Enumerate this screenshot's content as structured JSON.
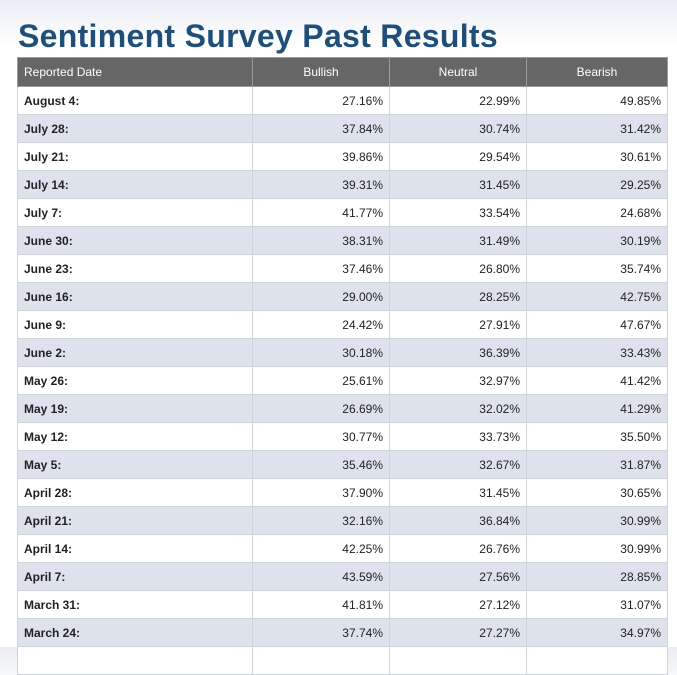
{
  "page": {
    "title": "Sentiment Survey Past Results"
  },
  "table": {
    "headers": [
      "Reported Date",
      "Bullish",
      "Neutral",
      "Bearish"
    ],
    "rows": [
      {
        "date": "August 4:",
        "bullish": "27.16%",
        "neutral": "22.99%",
        "bearish": "49.85%"
      },
      {
        "date": "July 28:",
        "bullish": "37.84%",
        "neutral": "30.74%",
        "bearish": "31.42%"
      },
      {
        "date": "July 21:",
        "bullish": "39.86%",
        "neutral": "29.54%",
        "bearish": "30.61%"
      },
      {
        "date": "July 14:",
        "bullish": "39.31%",
        "neutral": "31.45%",
        "bearish": "29.25%"
      },
      {
        "date": "July 7:",
        "bullish": "41.77%",
        "neutral": "33.54%",
        "bearish": "24.68%"
      },
      {
        "date": "June 30:",
        "bullish": "38.31%",
        "neutral": "31.49%",
        "bearish": "30.19%"
      },
      {
        "date": "June 23:",
        "bullish": "37.46%",
        "neutral": "26.80%",
        "bearish": "35.74%"
      },
      {
        "date": "June 16:",
        "bullish": "29.00%",
        "neutral": "28.25%",
        "bearish": "42.75%"
      },
      {
        "date": "June 9:",
        "bullish": "24.42%",
        "neutral": "27.91%",
        "bearish": "47.67%"
      },
      {
        "date": "June 2:",
        "bullish": "30.18%",
        "neutral": "36.39%",
        "bearish": "33.43%"
      },
      {
        "date": "May 26:",
        "bullish": "25.61%",
        "neutral": "32.97%",
        "bearish": "41.42%"
      },
      {
        "date": "May 19:",
        "bullish": "26.69%",
        "neutral": "32.02%",
        "bearish": "41.29%"
      },
      {
        "date": "May 12:",
        "bullish": "30.77%",
        "neutral": "33.73%",
        "bearish": "35.50%"
      },
      {
        "date": "May 5:",
        "bullish": "35.46%",
        "neutral": "32.67%",
        "bearish": "31.87%"
      },
      {
        "date": "April 28:",
        "bullish": "37.90%",
        "neutral": "31.45%",
        "bearish": "30.65%"
      },
      {
        "date": "April 21:",
        "bullish": "32.16%",
        "neutral": "36.84%",
        "bearish": "30.99%"
      },
      {
        "date": "April 14:",
        "bullish": "42.25%",
        "neutral": "26.76%",
        "bearish": "30.99%"
      },
      {
        "date": "April 7:",
        "bullish": "43.59%",
        "neutral": "27.56%",
        "bearish": "28.85%"
      },
      {
        "date": "March 31:",
        "bullish": "41.81%",
        "neutral": "27.12%",
        "bearish": "31.07%"
      },
      {
        "date": "March 24:",
        "bullish": "37.74%",
        "neutral": "27.27%",
        "bearish": "34.97%"
      },
      {
        "date": "",
        "bullish": "",
        "neutral": "",
        "bearish": ""
      }
    ]
  },
  "colors": {
    "title": "#1f4e79",
    "header_bg": "#666666",
    "row_alt": "#dde2ec",
    "row_normal": "#ffffff"
  }
}
